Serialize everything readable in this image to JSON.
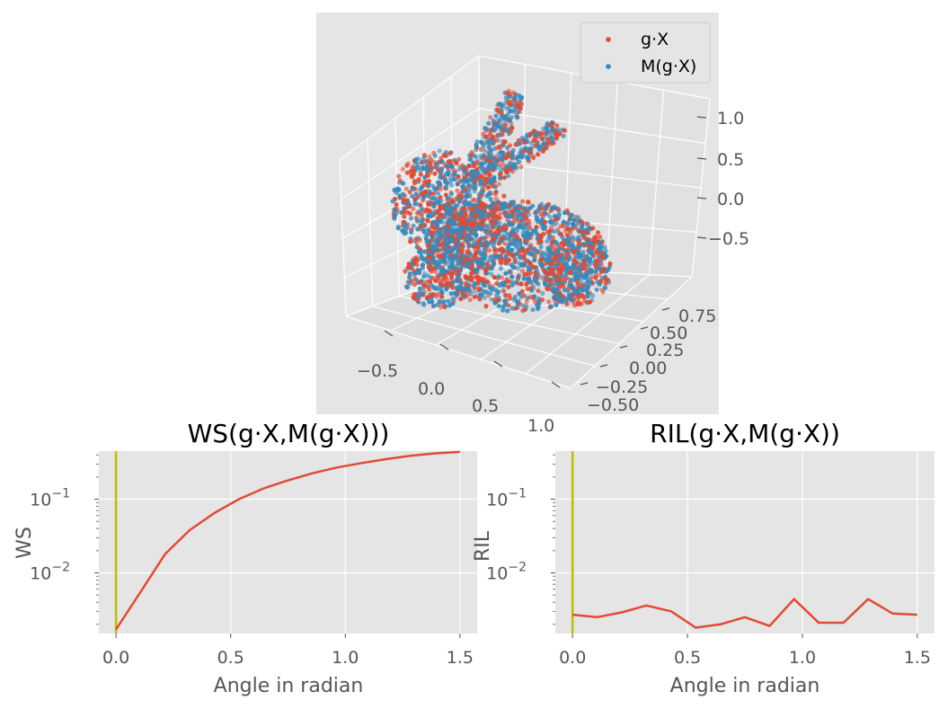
{
  "chart_data": [
    {
      "type": "scatter",
      "projection": "3d",
      "series": [
        {
          "name": "g·X",
          "color": "#E24A33"
        },
        {
          "name": "M(g·X)",
          "color": "#348ABD"
        }
      ],
      "xticks": [
        "−0.5",
        "0.0",
        "0.5",
        "1.0"
      ],
      "yticks": [
        "−0.50",
        "−0.25",
        "0.00",
        "0.25",
        "0.50",
        "0.75"
      ],
      "zticks": [
        "−0.5",
        "0.0",
        "0.5",
        "1.0"
      ],
      "legend_position": "top-right",
      "grid": true
    },
    {
      "type": "line",
      "title": "WS(g·X,M(g·X)))",
      "xlabel": "Angle in radian",
      "ylabel": "WS",
      "yscale": "log",
      "xlim": [
        -0.075,
        1.575
      ],
      "ylim": [
        0.0015,
        0.45
      ],
      "xticks": [
        "0.0",
        "0.5",
        "1.0",
        "1.5"
      ],
      "ytick_labels": [
        {
          "base": "10",
          "exp": "−2"
        },
        {
          "base": "10",
          "exp": "−1"
        }
      ],
      "vline_x": 0,
      "vline_color": "#BFBF00",
      "line_color": "#E24A33",
      "x": [
        0,
        0.107,
        0.214,
        0.321,
        0.429,
        0.536,
        0.643,
        0.75,
        0.857,
        0.964,
        1.071,
        1.179,
        1.286,
        1.393,
        1.5
      ],
      "values": [
        0.0017,
        0.0055,
        0.018,
        0.038,
        0.065,
        0.1,
        0.14,
        0.18,
        0.225,
        0.27,
        0.31,
        0.35,
        0.39,
        0.42,
        0.44
      ]
    },
    {
      "type": "line",
      "title": "RIL(g·X,M(g·X))",
      "xlabel": "Angle in radian",
      "ylabel": "RIL",
      "yscale": "log",
      "xlim": [
        -0.075,
        1.575
      ],
      "ylim": [
        0.0015,
        0.45
      ],
      "xticks": [
        "0.0",
        "0.5",
        "1.0",
        "1.5"
      ],
      "ytick_labels": [
        {
          "base": "10",
          "exp": "−2"
        },
        {
          "base": "10",
          "exp": "−1"
        }
      ],
      "vline_x": 0,
      "vline_color": "#BFBF00",
      "line_color": "#E24A33",
      "x": [
        0,
        0.107,
        0.214,
        0.321,
        0.429,
        0.536,
        0.643,
        0.75,
        0.857,
        0.964,
        1.071,
        1.179,
        1.286,
        1.393,
        1.5
      ],
      "values": [
        0.0027,
        0.0025,
        0.0029,
        0.0036,
        0.003,
        0.0018,
        0.002,
        0.0025,
        0.0019,
        0.0044,
        0.0021,
        0.0021,
        0.0044,
        0.0028,
        0.0027
      ]
    }
  ]
}
